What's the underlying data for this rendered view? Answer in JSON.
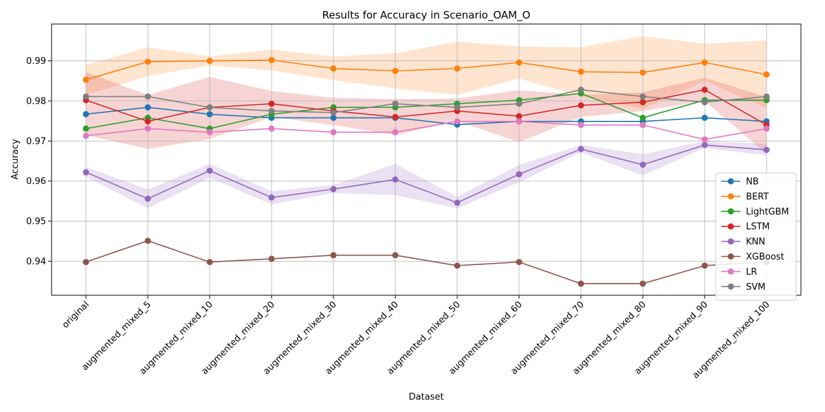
{
  "chart_data": {
    "type": "line",
    "title": "Results for Accuracy in Scenario_OAM_O",
    "xlabel": "Dataset",
    "ylabel": "Accuracy",
    "ylim": [
      0.9315,
      0.9992
    ],
    "yticks": [
      0.94,
      0.95,
      0.96,
      0.97,
      0.98,
      0.99
    ],
    "ytick_labels": [
      "0.94",
      "0.95",
      "0.96",
      "0.97",
      "0.98",
      "0.99"
    ],
    "grid": true,
    "legend_position": "lower-right",
    "categories": [
      "original",
      "augmented_mixed_5",
      "augmented_mixed_10",
      "augmented_mixed_20",
      "augmented_mixed_30",
      "augmented_mixed_40",
      "augmented_mixed_50",
      "augmented_mixed_60",
      "augmented_mixed_70",
      "augmented_mixed_80",
      "augmented_mixed_90",
      "augmented_mixed_100"
    ],
    "series": [
      {
        "name": "NB",
        "color": "#1f77b4",
        "values": [
          0.9767,
          0.9784,
          0.9767,
          0.9758,
          0.9758,
          0.9758,
          0.9741,
          0.9749,
          0.9749,
          0.9749,
          0.9758,
          0.9749
        ]
      },
      {
        "name": "BERT",
        "color": "#ff7f0e",
        "values": [
          0.9853,
          0.9898,
          0.99,
          0.9902,
          0.9881,
          0.9875,
          0.9881,
          0.9896,
          0.9873,
          0.9871,
          0.9896,
          0.9866
        ],
        "band_lower": [
          0.9815,
          0.9862,
          0.9889,
          0.9876,
          0.9852,
          0.9831,
          0.9815,
          0.9856,
          0.9812,
          0.978,
          0.985,
          0.9782
        ],
        "band_upper": [
          0.989,
          0.9934,
          0.9911,
          0.9928,
          0.9911,
          0.9919,
          0.9948,
          0.9936,
          0.9934,
          0.9962,
          0.9943,
          0.9951
        ]
      },
      {
        "name": "LightGBM",
        "color": "#2ca02c",
        "values": [
          0.9731,
          0.9758,
          0.9731,
          0.9767,
          0.9784,
          0.9784,
          0.9793,
          0.9802,
          0.9819,
          0.9758,
          0.9802,
          0.9802
        ]
      },
      {
        "name": "LSTM",
        "color": "#d62728",
        "values": [
          0.9802,
          0.9749,
          0.9784,
          0.9793,
          0.9775,
          0.976,
          0.9775,
          0.9762,
          0.9789,
          0.9797,
          0.9828,
          0.974
        ],
        "band_lower": [
          0.9715,
          0.968,
          0.9705,
          0.976,
          0.974,
          0.9715,
          0.975,
          0.9697,
          0.976,
          0.9775,
          0.98,
          0.9668
        ],
        "band_upper": [
          0.9872,
          0.9815,
          0.986,
          0.9825,
          0.9808,
          0.9805,
          0.9806,
          0.9827,
          0.9815,
          0.9822,
          0.9858,
          0.981
        ]
      },
      {
        "name": "KNN",
        "color": "#9467bd",
        "values": [
          0.9622,
          0.9556,
          0.9626,
          0.9559,
          0.958,
          0.9604,
          0.9546,
          0.9617,
          0.968,
          0.9641,
          0.969,
          0.9678
        ],
        "band_lower": [
          0.961,
          0.9532,
          0.9608,
          0.9542,
          0.957,
          0.9565,
          0.9532,
          0.9597,
          0.9672,
          0.9614,
          0.9683,
          0.9664
        ],
        "band_upper": [
          0.9635,
          0.9579,
          0.9643,
          0.9575,
          0.959,
          0.9643,
          0.9561,
          0.964,
          0.969,
          0.9667,
          0.97,
          0.9693
        ]
      },
      {
        "name": "XGBoost",
        "color": "#8c564b",
        "values": [
          0.9398,
          0.9451,
          0.9398,
          0.9406,
          0.9415,
          0.9415,
          0.9389,
          0.9398,
          0.9344,
          0.9344,
          0.9389,
          0.9398
        ]
      },
      {
        "name": "LR",
        "color": "#e377c2",
        "values": [
          0.9713,
          0.9731,
          0.9722,
          0.9731,
          0.9722,
          0.9722,
          0.9749,
          0.9749,
          0.974,
          0.974,
          0.9704,
          0.9731
        ]
      },
      {
        "name": "SVM",
        "color": "#7f7f7f",
        "values": [
          0.9811,
          0.9811,
          0.9784,
          0.9775,
          0.9771,
          0.9793,
          0.9784,
          0.9793,
          0.9828,
          0.9811,
          0.9797,
          0.9811
        ]
      }
    ]
  }
}
